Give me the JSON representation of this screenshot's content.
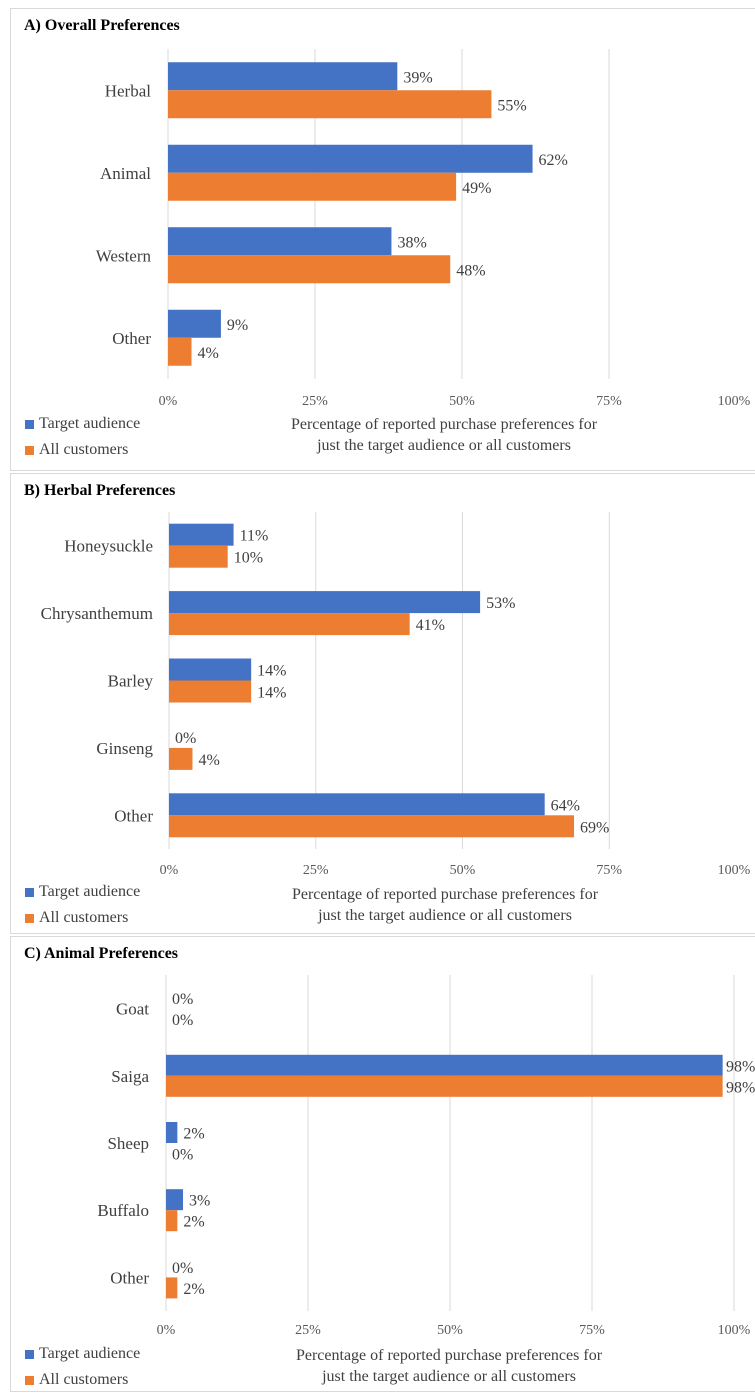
{
  "colors": {
    "target": "#4472C4",
    "all": "#ED7D31",
    "grid": "#d9d9d9"
  },
  "legend": {
    "target": "Target audience",
    "all": "All customers"
  },
  "axis_title": {
    "line1": "Percentage of reported purchase preferences for",
    "line2": "just the target audience or all customers"
  },
  "chart_data": [
    {
      "type": "bar",
      "orientation": "horizontal",
      "title": "A) Overall Preferences",
      "categories": [
        "Herbal",
        "Animal",
        "Western",
        "Other"
      ],
      "series": [
        {
          "name": "Target audience",
          "values": [
            39,
            62,
            38,
            9
          ]
        },
        {
          "name": "All customers",
          "values": [
            55,
            49,
            48,
            4
          ]
        }
      ],
      "data_labels": [
        [
          "39%",
          "62%",
          "38%",
          "9%"
        ],
        [
          "55%",
          "49%",
          "48%",
          "4%"
        ]
      ],
      "xlim": [
        0,
        100
      ],
      "xticks": [
        "0%",
        "25%",
        "50%",
        "75%",
        "100%"
      ],
      "xlabel": "Percentage of reported purchase preferences for just the target audience or all customers",
      "grid": true,
      "legend": "bottom-left"
    },
    {
      "type": "bar",
      "orientation": "horizontal",
      "title": "B) Herbal Preferences",
      "categories": [
        "Honeysuckle",
        "Chrysanthemum",
        "Barley",
        "Ginseng",
        "Other"
      ],
      "series": [
        {
          "name": "Target audience",
          "values": [
            11,
            53,
            14,
            0,
            64
          ]
        },
        {
          "name": "All customers",
          "values": [
            10,
            41,
            14,
            4,
            69
          ]
        }
      ],
      "data_labels": [
        [
          "11%",
          "53%",
          "14%",
          "0%",
          "64%"
        ],
        [
          "10%",
          "41%",
          "14%",
          "4%",
          "69%"
        ]
      ],
      "xlim": [
        0,
        100
      ],
      "xticks": [
        "0%",
        "25%",
        "50%",
        "75%",
        "100%"
      ],
      "xlabel": "Percentage of reported purchase preferences for just the target audience or all customers",
      "grid": true,
      "legend": "bottom-left"
    },
    {
      "type": "bar",
      "orientation": "horizontal",
      "title": "C) Animal Preferences",
      "categories": [
        "Goat",
        "Saiga",
        "Sheep",
        "Buffalo",
        "Other"
      ],
      "series": [
        {
          "name": "Target audience",
          "values": [
            0,
            98,
            2,
            3,
            0
          ]
        },
        {
          "name": "All customers",
          "values": [
            0,
            98,
            0,
            2,
            2
          ]
        }
      ],
      "data_labels": [
        [
          "0%",
          "98%",
          "2%",
          "3%",
          "0%"
        ],
        [
          "0%",
          "98%",
          "0%",
          "2%",
          "2%"
        ]
      ],
      "xlim": [
        0,
        100
      ],
      "xticks": [
        "0%",
        "25%",
        "50%",
        "75%",
        "100%"
      ],
      "xlabel": "Percentage of reported purchase preferences for just the target audience or all customers",
      "grid": true,
      "legend": "bottom-left"
    }
  ]
}
